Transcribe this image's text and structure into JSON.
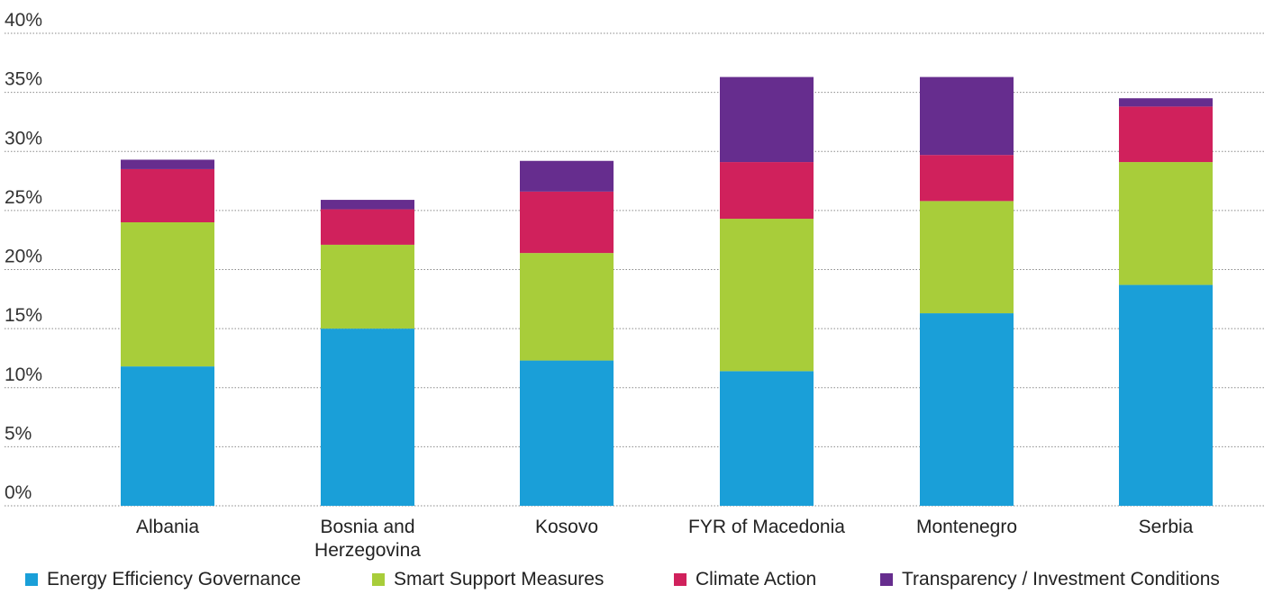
{
  "chart_data": {
    "type": "bar",
    "stacked": true,
    "categories": [
      "Albania",
      "Bosnia and Herzegovina",
      "Kosovo",
      "FYR of Macedonia",
      "Montenegro",
      "Serbia"
    ],
    "category_lines": [
      [
        "Albania"
      ],
      [
        "Bosnia and",
        "Herzegovina"
      ],
      [
        "Kosovo"
      ],
      [
        "FYR of Macedonia"
      ],
      [
        "Montenegro"
      ],
      [
        "Serbia"
      ]
    ],
    "series": [
      {
        "name": "Energy Efficiency Governance",
        "color": "#1a9fd8",
        "values": [
          11.8,
          15.0,
          12.3,
          11.4,
          16.3,
          18.7
        ]
      },
      {
        "name": "Smart Support Measures",
        "color": "#a8cd3a",
        "values": [
          12.2,
          7.1,
          9.1,
          12.9,
          9.5,
          10.4
        ]
      },
      {
        "name": "Climate Action",
        "color": "#d0215c",
        "values": [
          4.5,
          3.0,
          5.2,
          4.8,
          3.9,
          4.7
        ]
      },
      {
        "name": "Transparency / Investment Conditions",
        "color": "#662d8e",
        "values": [
          0.8,
          0.8,
          2.6,
          7.2,
          6.6,
          0.7
        ]
      }
    ],
    "yticks": [
      "0%",
      "5%",
      "10%",
      "15%",
      "20%",
      "25%",
      "30%",
      "35%",
      "40%"
    ],
    "ylim": [
      0,
      40
    ],
    "grid": "dotted horizontal",
    "legend_position": "bottom"
  }
}
